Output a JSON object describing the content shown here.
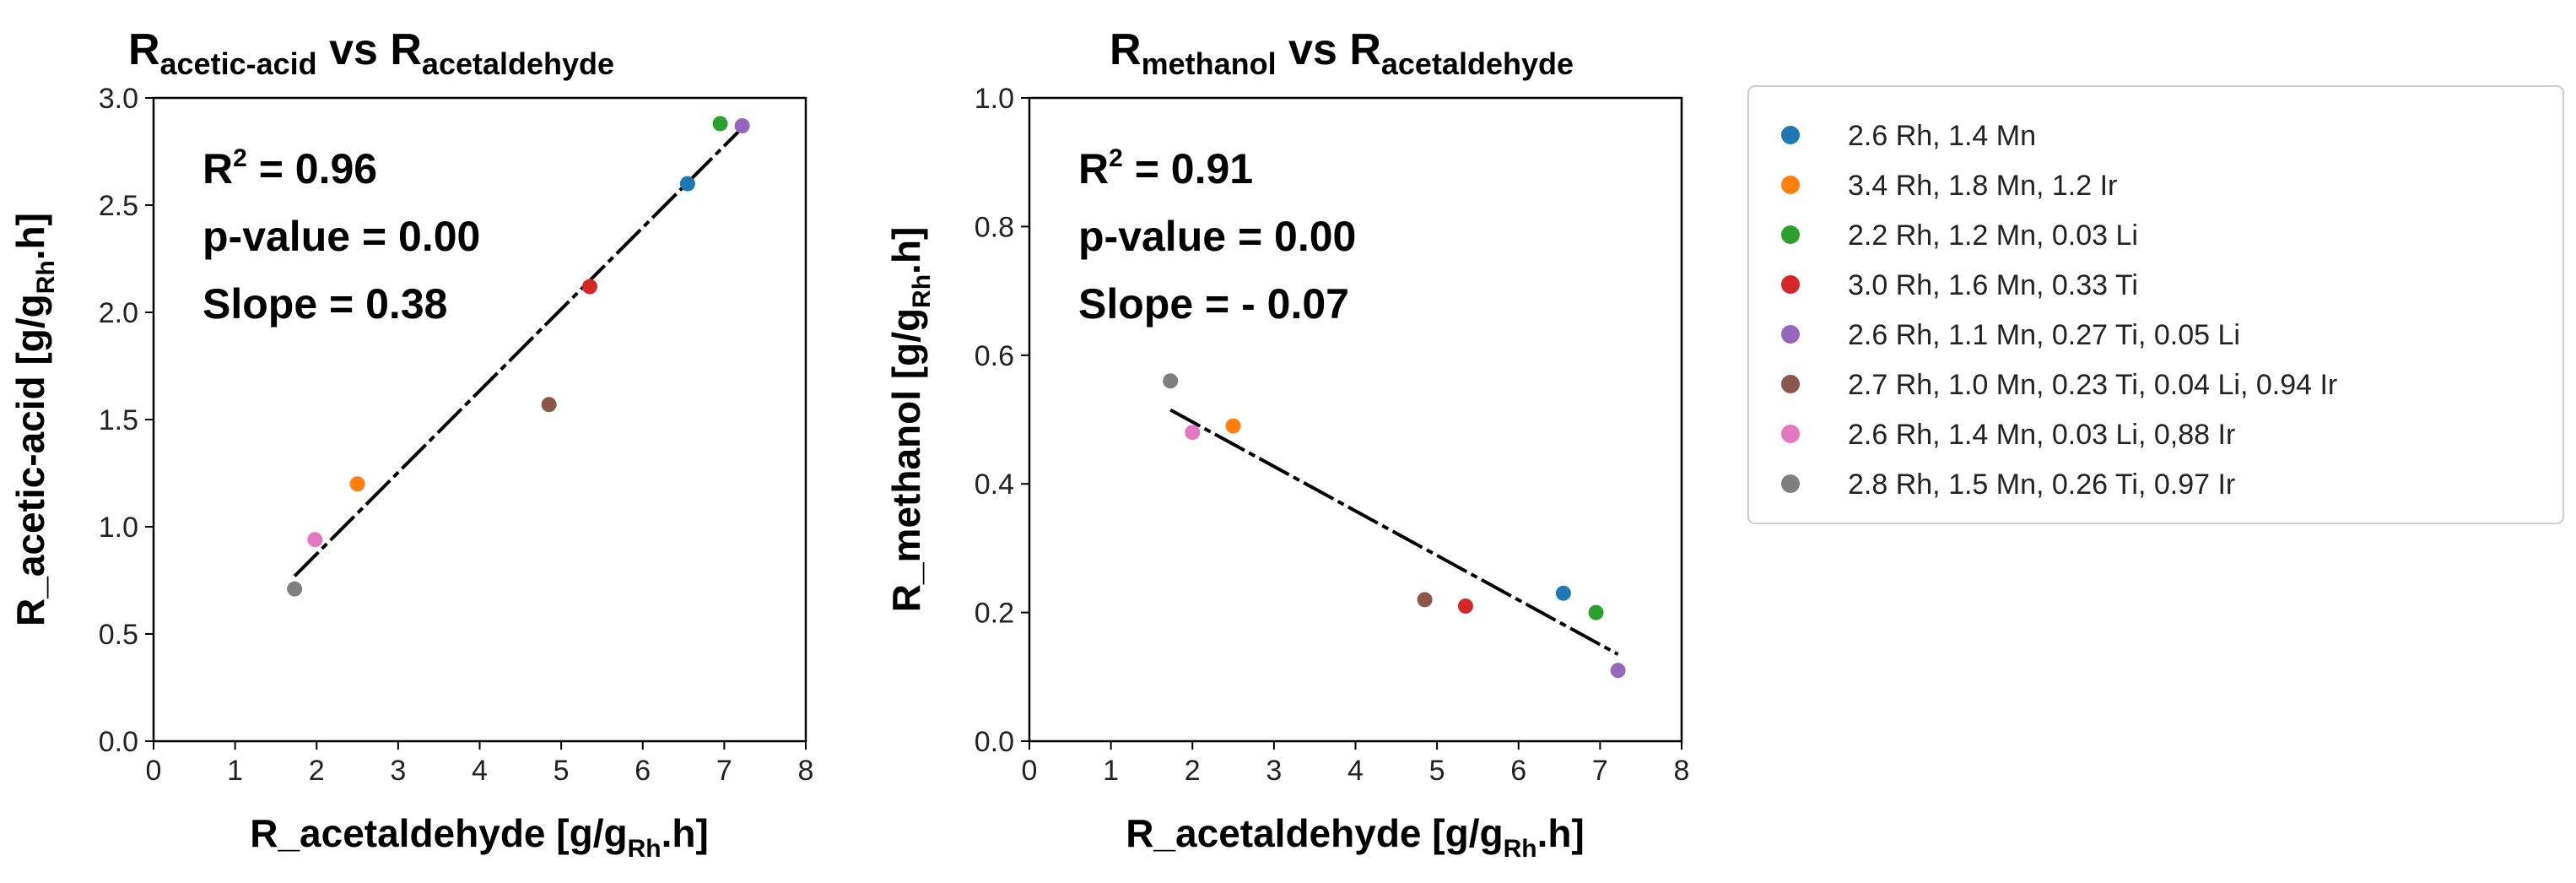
{
  "chart_data": [
    {
      "type": "scatter",
      "title": {
        "main1": "R",
        "sub1": "acetic-acid",
        "mid": " vs ",
        "main2": "R",
        "sub2": "acetaldehyde"
      },
      "xlabel": {
        "pre": "R_acetaldehyde [g/g",
        "sub": "Rh",
        "post": ".h]"
      },
      "ylabel": {
        "pre": "R_acetic-acid [g/g",
        "sub": "Rh",
        "post": ".h]"
      },
      "xlim": [
        0,
        8
      ],
      "ylim": [
        0,
        3
      ],
      "xticks": [
        0,
        1,
        2,
        3,
        4,
        5,
        6,
        7,
        8
      ],
      "yticks": [
        0.0,
        0.5,
        1.0,
        1.5,
        2.0,
        2.5,
        3.0
      ],
      "ytick_labels": [
        "0.0",
        "0.5",
        "1.0",
        "1.5",
        "2.0",
        "2.5",
        "3.0"
      ],
      "annotations": {
        "r2_pre": "R",
        "r2_sup": "2",
        "r2_post": " = 0.96",
        "pvalue": "p-value = 0.00",
        "slope": "Slope = 0.38"
      },
      "points": [
        {
          "x": 6.55,
          "y": 2.6,
          "series": 0
        },
        {
          "x": 2.5,
          "y": 1.2,
          "series": 1
        },
        {
          "x": 6.95,
          "y": 2.88,
          "series": 2
        },
        {
          "x": 5.35,
          "y": 2.12,
          "series": 3
        },
        {
          "x": 7.22,
          "y": 2.87,
          "series": 4
        },
        {
          "x": 4.85,
          "y": 1.57,
          "series": 5
        },
        {
          "x": 1.98,
          "y": 0.94,
          "series": 6
        },
        {
          "x": 1.73,
          "y": 0.71,
          "series": 7
        }
      ],
      "fit": {
        "x": [
          1.73,
          7.22
        ],
        "y": [
          0.77,
          2.86
        ]
      }
    },
    {
      "type": "scatter",
      "title": {
        "main1": "R",
        "sub1": "methanol",
        "mid": " vs ",
        "main2": "R",
        "sub2": "acetaldehyde"
      },
      "xlabel": {
        "pre": "R_acetaldehyde [g/g",
        "sub": "Rh",
        "post": ".h]"
      },
      "ylabel": {
        "pre": "R_methanol [g/g",
        "sub": "Rh",
        "post": ".h]"
      },
      "xlim": [
        0,
        8
      ],
      "ylim": [
        0,
        1
      ],
      "xticks": [
        0,
        1,
        2,
        3,
        4,
        5,
        6,
        7,
        8
      ],
      "yticks": [
        0.0,
        0.2,
        0.4,
        0.6,
        0.8,
        1.0
      ],
      "ytick_labels": [
        "0.0",
        "0.2",
        "0.4",
        "0.6",
        "0.8",
        "1.0"
      ],
      "annotations": {
        "r2_pre": "R",
        "r2_sup": "2",
        "r2_post": " = 0.91",
        "pvalue": "p-value = 0.00",
        "slope": "Slope = - 0.07"
      },
      "points": [
        {
          "x": 6.55,
          "y": 0.23,
          "series": 0
        },
        {
          "x": 2.5,
          "y": 0.49,
          "series": 1
        },
        {
          "x": 6.95,
          "y": 0.2,
          "series": 2
        },
        {
          "x": 5.35,
          "y": 0.21,
          "series": 3
        },
        {
          "x": 7.22,
          "y": 0.11,
          "series": 4
        },
        {
          "x": 4.85,
          "y": 0.22,
          "series": 5
        },
        {
          "x": 2.0,
          "y": 0.48,
          "series": 6
        },
        {
          "x": 1.73,
          "y": 0.56,
          "series": 7
        }
      ],
      "fit": {
        "x": [
          1.73,
          7.22
        ],
        "y": [
          0.515,
          0.135
        ]
      }
    }
  ],
  "legend": [
    {
      "label": "2.6 Rh, 1.4 Mn",
      "color": "#1f77b4"
    },
    {
      "label": "3.4 Rh, 1.8 Mn, 1.2 Ir",
      "color": "#ff7f0e"
    },
    {
      "label": "2.2 Rh, 1.2 Mn, 0.03 Li",
      "color": "#2ca02c"
    },
    {
      "label": "3.0 Rh, 1.6 Mn, 0.33 Ti",
      "color": "#d62728"
    },
    {
      "label": "2.6 Rh, 1.1 Mn, 0.27 Ti, 0.05 Li",
      "color": "#9467bd"
    },
    {
      "label": "2.7 Rh, 1.0 Mn, 0.23 Ti, 0.04 Li, 0.94 Ir",
      "color": "#8c564b"
    },
    {
      "label": "2.6 Rh, 1.4 Mn, 0.03 Li, 0,88 Ir",
      "color": "#e377c2"
    },
    {
      "label": "2.8 Rh, 1.5 Mn, 0.26 Ti, 0.97 Ir",
      "color": "#7f7f7f"
    }
  ]
}
